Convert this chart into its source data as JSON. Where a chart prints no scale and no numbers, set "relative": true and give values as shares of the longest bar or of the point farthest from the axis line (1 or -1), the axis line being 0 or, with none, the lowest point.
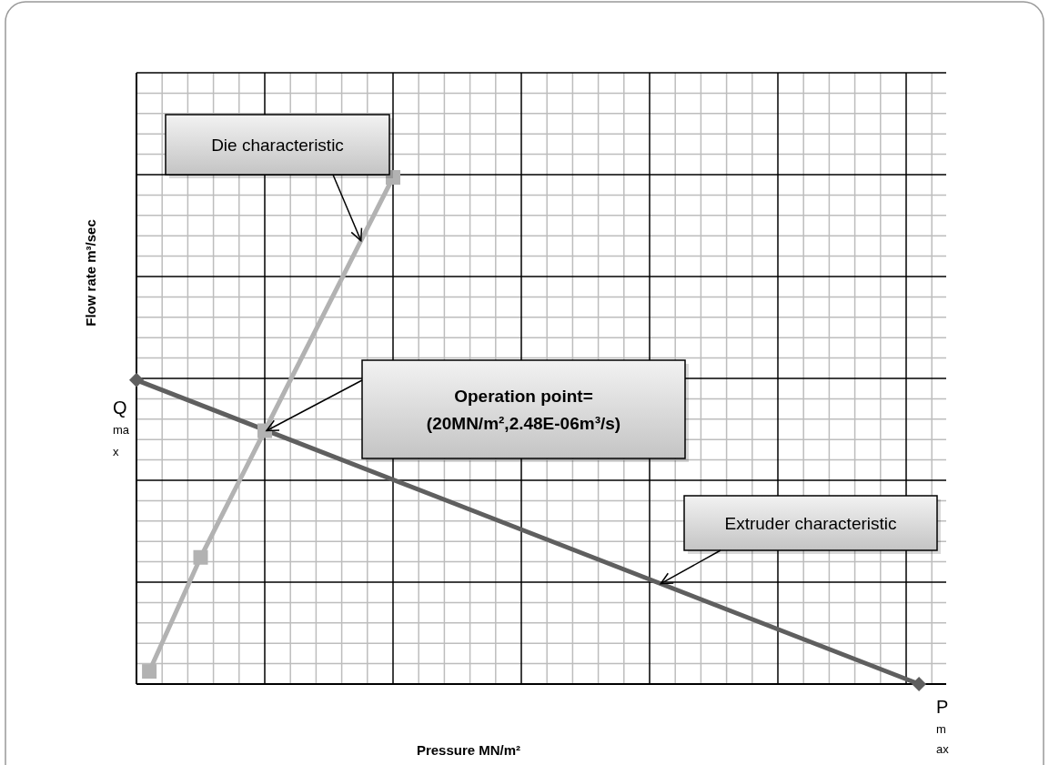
{
  "chart_data": {
    "type": "line",
    "relative": true,
    "xlabel": "Pressure MN/m²",
    "ylabel": "Flow rate m³/sec",
    "grid": true,
    "line_style": "solid",
    "categories": [
      null,
      null,
      null,
      null,
      null,
      null,
      null,
      null,
      null,
      null,
      null,
      null,
      null,
      null,
      null,
      null,
      null,
      null,
      null,
      null,
      null,
      null,
      null,
      null,
      null,
      null,
      null,
      null,
      null,
      null,
      null,
      null,
      null,
      null,
      null,
      null,
      null,
      null,
      null,
      null,
      null,
      null,
      null,
      null,
      null,
      null,
      null,
      null,
      null,
      null,
      null,
      null,
      null,
      null,
      null,
      null,
      null,
      null,
      null,
      null,
      null,
      null,
      null,
      null
    ],
    "series": [
      {
        "name": "Extruder characteristic",
        "color": "#5f5f5f",
        "marker": "diamond",
        "values": [
          0.6,
          null,
          null,
          null,
          null,
          null,
          null,
          null,
          null,
          null,
          null,
          null,
          null,
          null,
          null,
          null,
          null,
          null,
          null,
          null,
          null,
          null,
          null,
          null,
          null,
          null,
          null,
          null,
          null,
          null,
          null,
          null,
          null,
          null,
          null,
          null,
          null,
          null,
          null,
          null,
          null,
          null,
          null,
          null,
          null,
          null,
          null,
          null,
          null,
          null,
          null,
          null,
          null,
          null,
          null,
          null,
          null,
          null,
          null,
          null,
          null,
          0,
          null,
          null
        ]
      },
      {
        "name": "Die characteristic",
        "color": "#b2b2b2",
        "marker": "square",
        "values": [
          null,
          0.025,
          null,
          null,
          null,
          0.25,
          null,
          null,
          null,
          null,
          0.5,
          null,
          null,
          null,
          null,
          null,
          null,
          null,
          null,
          null,
          1,
          null,
          null,
          null,
          null,
          null,
          null,
          null,
          null,
          null,
          null,
          null,
          null,
          null,
          null,
          null,
          null,
          null,
          null,
          null,
          null,
          null,
          null,
          null,
          null,
          null,
          null,
          null,
          null,
          null,
          null,
          null,
          null,
          null,
          null,
          null,
          null,
          null,
          null,
          null,
          null,
          null,
          null,
          null
        ]
      }
    ],
    "annotations": [
      "Operation point=\n(20MN/m²,2.48E-06m³/s)",
      "Q$_{max}$",
      "P$_{max}$"
    ]
  }
}
